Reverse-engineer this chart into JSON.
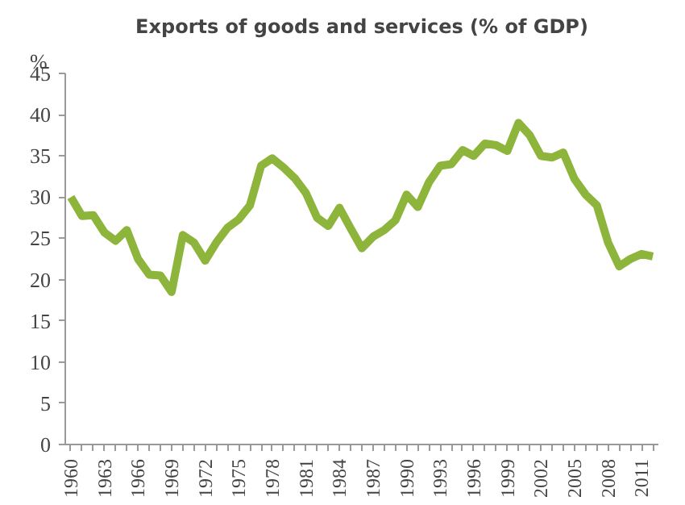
{
  "chart_data": {
    "type": "line",
    "title": "Exports of goods and services (% of GDP)",
    "ylabel": "%",
    "categories": [
      "1960",
      null,
      null,
      "1963",
      null,
      null,
      "1966",
      null,
      null,
      "1969",
      null,
      null,
      "1972",
      null,
      null,
      "1975",
      null,
      null,
      "1978",
      null,
      null,
      "1981",
      null,
      null,
      "1984",
      null,
      null,
      "1987",
      null,
      null,
      "1990",
      null,
      null,
      "1993",
      null,
      null,
      "1996",
      null,
      null,
      "1999",
      null,
      null,
      "2002",
      null,
      null,
      "2005",
      null,
      null,
      "2008",
      null,
      null,
      "2011",
      null
    ],
    "series": [
      {
        "color": "#8db53c",
        "values": [
          30,
          27.7,
          27.8,
          25.7,
          24.7,
          26,
          22.5,
          20.6,
          20.5,
          18.5,
          25.4,
          24.5,
          22.3,
          24.5,
          26.3,
          27.3,
          29,
          33.8,
          34.7,
          33.6,
          32.3,
          30.5,
          27.5,
          26.5,
          28.7,
          26.2,
          23.8,
          25.2,
          26,
          27.2,
          30.3,
          28.8,
          31.8,
          33.8,
          34,
          35.7,
          35,
          36.5,
          36.3,
          35.6,
          39,
          37.5,
          35,
          34.8,
          35.4,
          32.2,
          30.3,
          29,
          24.5,
          21.6,
          22.5,
          23.1,
          22.8
        ]
      }
    ],
    "ylim": [
      0,
      45
    ],
    "yticks": [
      0,
      5,
      10,
      15,
      20,
      25,
      30,
      35,
      40,
      45
    ],
    "grid": false,
    "marker": "none",
    "line_style": "solid"
  }
}
